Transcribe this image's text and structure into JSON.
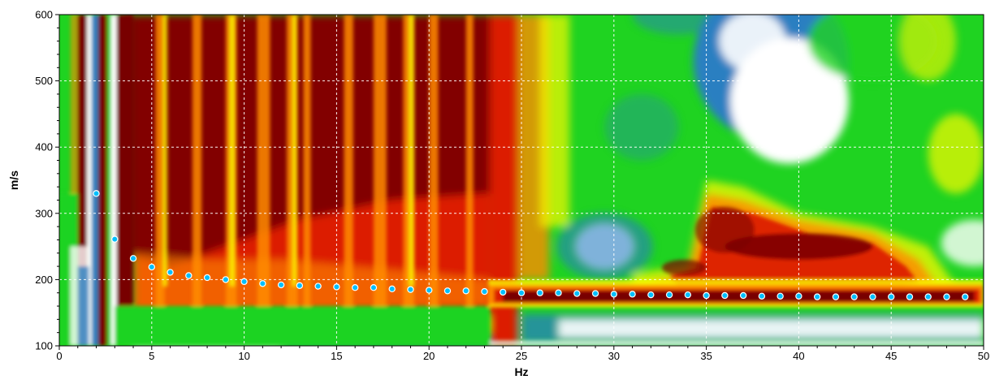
{
  "chart_data": {
    "type": "heatmap",
    "title": "",
    "xlabel": "Hz",
    "ylabel": "m/s",
    "xlim": [
      0,
      50
    ],
    "ylim": [
      100,
      600
    ],
    "xticks": [
      0,
      5,
      10,
      15,
      20,
      25,
      30,
      35,
      40,
      45,
      50
    ],
    "yticks": [
      100,
      200,
      300,
      400,
      500,
      600
    ],
    "grid": true,
    "legend": "none",
    "colormap": [
      "#ffffff",
      "#2a7fc1",
      "#1fd321",
      "#f9f900",
      "#ff8c00",
      "#dc1e00",
      "#780000"
    ],
    "heatmap_description": "dispersion image; high energy (dark red) over 1-23 Hz at all velocities, narrow high-energy band near 170-180 m/s above 23 Hz, secondary high-energy lobe 33-47 Hz around 200-350 m/s",
    "picked_points": {
      "name": "",
      "marker_color": "#00bfff",
      "x": [
        2,
        3,
        4,
        5,
        6,
        7,
        8,
        9,
        10,
        11,
        12,
        13,
        14,
        15,
        16,
        17,
        18,
        19,
        20,
        21,
        22,
        23,
        24,
        25,
        26,
        27,
        28,
        29,
        30,
        31,
        32,
        33,
        34,
        35,
        36,
        37,
        38,
        39,
        40,
        41,
        42,
        43,
        44,
        45,
        46,
        47,
        48,
        49
      ],
      "y": [
        330,
        261,
        232,
        219,
        211,
        206,
        203,
        200,
        197,
        194,
        192,
        191,
        190,
        189,
        188,
        188,
        186,
        185,
        184,
        183,
        183,
        182,
        181,
        180,
        180,
        180,
        179,
        179,
        178,
        178,
        177,
        177,
        177,
        176,
        176,
        176,
        175,
        175,
        175,
        174,
        174,
        174,
        174,
        174,
        174,
        174,
        174,
        174
      ]
    }
  }
}
